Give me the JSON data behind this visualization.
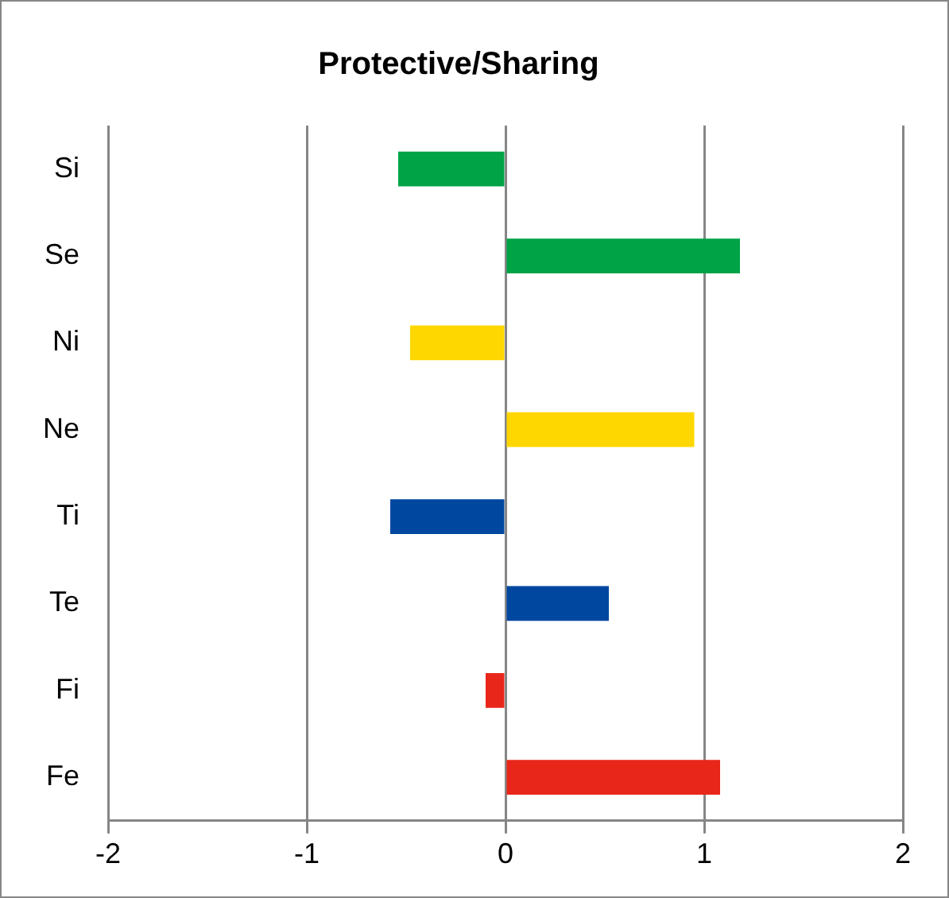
{
  "chart_data": {
    "type": "bar",
    "orientation": "horizontal",
    "title": "Protective/Sharing",
    "categories": [
      "Si",
      "Se",
      "Ni",
      "Ne",
      "Ti",
      "Te",
      "Fi",
      "Fe"
    ],
    "values": [
      -0.54,
      1.18,
      -0.48,
      0.95,
      -0.58,
      0.52,
      -0.1,
      1.08
    ],
    "colors": [
      "#00a346",
      "#00a346",
      "#ffd700",
      "#ffd700",
      "#0047a0",
      "#0047a0",
      "#e8261a",
      "#e8261a"
    ],
    "xlim": [
      -2,
      2
    ],
    "xticks": [
      -2,
      -1,
      0,
      1,
      2
    ],
    "grid": "x",
    "legend": false
  }
}
